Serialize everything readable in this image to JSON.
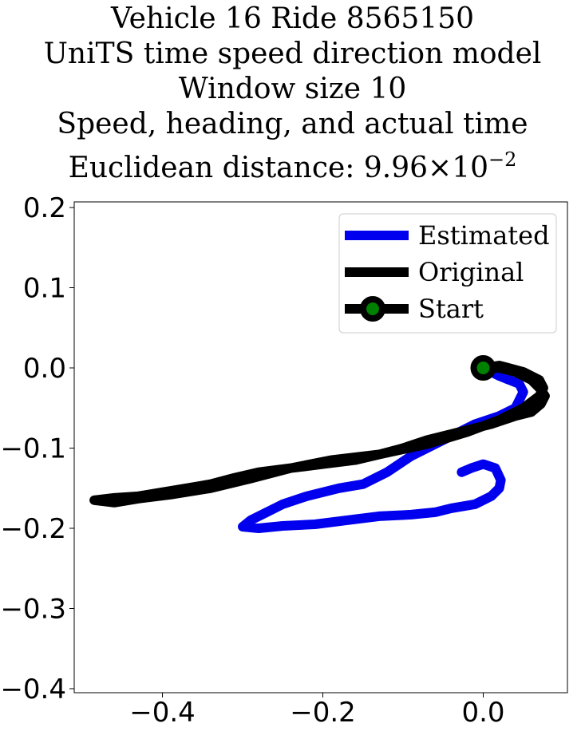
{
  "chart_data": {
    "type": "line",
    "title_lines": [
      "Vehicle 16 Ride 8565150",
      "UniTS time speed direction model",
      "Window size 10",
      "Speed, heading, and actual time"
    ],
    "title_metric_prefix": "Euclidean distance: 9.96",
    "title_metric_times": "×",
    "title_metric_base": "10",
    "title_metric_exponent": "−2",
    "xlim": [
      -0.51,
      0.105
    ],
    "ylim": [
      -0.405,
      0.207
    ],
    "xticks": [
      -0.4,
      -0.2,
      0.0
    ],
    "xtick_labels": [
      "−0.4",
      "−0.2",
      "0.0"
    ],
    "yticks": [
      0.2,
      0.1,
      0.0,
      -0.1,
      -0.2,
      -0.3,
      -0.4
    ],
    "ytick_labels": [
      "0.2",
      "0.1",
      "0.0",
      "−0.1",
      "−0.2",
      "−0.3",
      "−0.4"
    ],
    "legend_position": "upper right",
    "series": [
      {
        "name": "Estimated",
        "color": "#0000ee",
        "x": [
          0.0,
          0.02,
          0.045,
          0.05,
          0.04,
          0.02,
          -0.01,
          -0.05,
          -0.09,
          -0.12,
          -0.14,
          -0.15,
          -0.18,
          -0.22,
          -0.25,
          -0.27,
          -0.29,
          -0.3,
          -0.28,
          -0.25,
          -0.21,
          -0.17,
          -0.13,
          -0.09,
          -0.06,
          -0.04,
          -0.01,
          0.01,
          0.02,
          0.022,
          0.015,
          0.0,
          -0.015,
          -0.027
        ],
        "y": [
          0.0,
          -0.01,
          -0.02,
          -0.03,
          -0.05,
          -0.06,
          -0.07,
          -0.09,
          -0.11,
          -0.13,
          -0.14,
          -0.145,
          -0.15,
          -0.16,
          -0.17,
          -0.18,
          -0.19,
          -0.198,
          -0.2,
          -0.197,
          -0.195,
          -0.19,
          -0.185,
          -0.183,
          -0.18,
          -0.175,
          -0.17,
          -0.16,
          -0.15,
          -0.14,
          -0.125,
          -0.12,
          -0.125,
          -0.13
        ]
      },
      {
        "name": "Original",
        "color": "#000000",
        "x": [
          0.0,
          0.02,
          0.04,
          0.06,
          0.07,
          0.077,
          0.072,
          0.06,
          0.04,
          0.01,
          -0.03,
          -0.07,
          -0.1,
          -0.13,
          -0.16,
          -0.2,
          -0.24,
          -0.28,
          -0.31,
          -0.34,
          -0.37,
          -0.4,
          -0.43,
          -0.46,
          -0.485,
          -0.46,
          -0.43,
          -0.39,
          -0.34,
          -0.29,
          -0.24,
          -0.19,
          -0.13,
          -0.07,
          -0.02,
          0.02,
          0.05,
          0.07,
          0.075,
          0.07,
          0.05,
          0.02,
          0.0
        ],
        "y": [
          0.0,
          0.0,
          -0.005,
          -0.015,
          -0.025,
          -0.035,
          -0.045,
          -0.055,
          -0.06,
          -0.07,
          -0.08,
          -0.09,
          -0.1,
          -0.108,
          -0.115,
          -0.12,
          -0.125,
          -0.13,
          -0.137,
          -0.145,
          -0.15,
          -0.155,
          -0.16,
          -0.162,
          -0.165,
          -0.168,
          -0.163,
          -0.158,
          -0.15,
          -0.138,
          -0.125,
          -0.115,
          -0.108,
          -0.095,
          -0.08,
          -0.065,
          -0.05,
          -0.035,
          -0.025,
          -0.015,
          -0.005,
          0.003,
          0.0
        ]
      }
    ],
    "start_marker": {
      "name": "Start",
      "x": 0.0,
      "y": 0.0,
      "edge_color": "#000000",
      "face_color": "#008000"
    },
    "grid": false
  }
}
